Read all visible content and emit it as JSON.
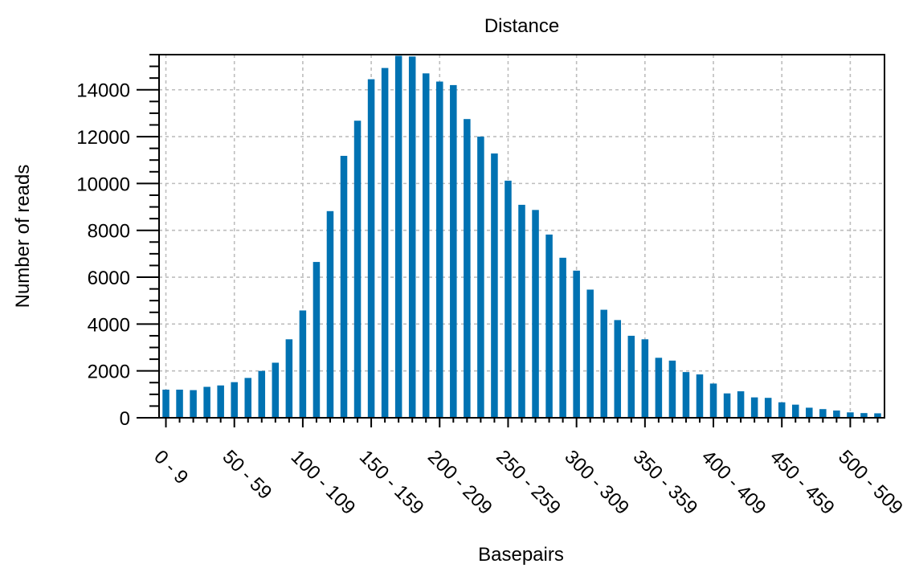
{
  "chart_data": {
    "type": "bar",
    "title": "Distance",
    "xlabel": "Basepairs",
    "ylabel": "Number of reads",
    "ylim": [
      0,
      15500
    ],
    "yticks": [
      0,
      2000,
      4000,
      6000,
      8000,
      10000,
      12000,
      14000
    ],
    "grid": true,
    "color": "#0072b2",
    "categories": [
      "0 - 9",
      "10 - 19",
      "20 - 29",
      "30 - 39",
      "40 - 49",
      "50 - 59",
      "60 - 69",
      "70 - 79",
      "80 - 89",
      "90 - 99",
      "100 - 109",
      "110 - 119",
      "120 - 129",
      "130 - 139",
      "140 - 149",
      "150 - 159",
      "160 - 169",
      "170 - 179",
      "180 - 189",
      "190 - 199",
      "200 - 209",
      "210 - 219",
      "220 - 229",
      "230 - 239",
      "240 - 249",
      "250 - 259",
      "260 - 269",
      "270 - 279",
      "280 - 289",
      "290 - 299",
      "300 - 309",
      "310 - 319",
      "320 - 329",
      "330 - 339",
      "340 - 349",
      "350 - 359",
      "360 - 369",
      "370 - 379",
      "380 - 389",
      "390 - 399",
      "400 - 409",
      "410 - 419",
      "420 - 429",
      "430 - 439",
      "440 - 449",
      "450 - 459",
      "460 - 469",
      "470 - 479",
      "480 - 489",
      "490 - 499",
      "500 - 509",
      "510 - 519",
      "520 - 529"
    ],
    "values": [
      1200,
      1200,
      1180,
      1320,
      1380,
      1520,
      1700,
      2000,
      2350,
      3350,
      4580,
      6650,
      8820,
      11180,
      12680,
      14450,
      14930,
      15450,
      15420,
      14700,
      14350,
      14200,
      12750,
      12000,
      11280,
      10120,
      9090,
      8870,
      7820,
      6830,
      6280,
      5470,
      4610,
      4170,
      3500,
      3350,
      2560,
      2440,
      1950,
      1850,
      1460,
      1040,
      1130,
      870,
      850,
      660,
      560,
      430,
      370,
      310,
      230,
      200,
      190
    ],
    "visible_tick_labels": [
      "0 - 9",
      "50 - 59",
      "100 - 109",
      "150 - 159",
      "200 - 209",
      "250 - 259",
      "300 - 309",
      "350 - 359",
      "400 - 409",
      "450 - 459",
      "500 - 509"
    ]
  }
}
